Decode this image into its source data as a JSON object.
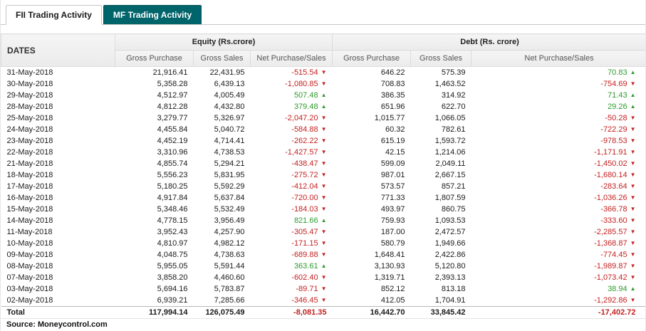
{
  "tabs": [
    {
      "label": "FII Trading Activity",
      "active": true
    },
    {
      "label": "MF Trading Activity",
      "active": false
    }
  ],
  "colors": {
    "negative": "#c42121",
    "positive": "#2e9b2e",
    "inactive_tab_bg": "#00646b"
  },
  "icons": {
    "up": "▲",
    "down": "▼"
  },
  "table": {
    "dates_header": "DATES",
    "groups": [
      {
        "label": "Equity (Rs.crore)"
      },
      {
        "label": "Debt (Rs. crore)"
      }
    ],
    "sub_headers": [
      "Gross Purchase",
      "Gross Sales",
      "Net Purchase/Sales",
      "Gross Purchase",
      "Gross Sales",
      "Net Purchase/Sales"
    ],
    "rows": [
      {
        "date": "31-May-2018",
        "eq_gp": "21,916.41",
        "eq_gs": "22,431.95",
        "eq_net": "-515.54",
        "eq_dir": "down",
        "dt_gp": "646.22",
        "dt_gs": "575.39",
        "dt_net": "70.83",
        "dt_dir": "up"
      },
      {
        "date": "30-May-2018",
        "eq_gp": "5,358.28",
        "eq_gs": "6,439.13",
        "eq_net": "-1,080.85",
        "eq_dir": "down",
        "dt_gp": "708.83",
        "dt_gs": "1,463.52",
        "dt_net": "-754.69",
        "dt_dir": "down"
      },
      {
        "date": "29-May-2018",
        "eq_gp": "4,512.97",
        "eq_gs": "4,005.49",
        "eq_net": "507.48",
        "eq_dir": "up",
        "dt_gp": "386.35",
        "dt_gs": "314.92",
        "dt_net": "71.43",
        "dt_dir": "up"
      },
      {
        "date": "28-May-2018",
        "eq_gp": "4,812.28",
        "eq_gs": "4,432.80",
        "eq_net": "379.48",
        "eq_dir": "up",
        "dt_gp": "651.96",
        "dt_gs": "622.70",
        "dt_net": "29.26",
        "dt_dir": "up"
      },
      {
        "date": "25-May-2018",
        "eq_gp": "3,279.77",
        "eq_gs": "5,326.97",
        "eq_net": "-2,047.20",
        "eq_dir": "down",
        "dt_gp": "1,015.77",
        "dt_gs": "1,066.05",
        "dt_net": "-50.28",
        "dt_dir": "down"
      },
      {
        "date": "24-May-2018",
        "eq_gp": "4,455.84",
        "eq_gs": "5,040.72",
        "eq_net": "-584.88",
        "eq_dir": "down",
        "dt_gp": "60.32",
        "dt_gs": "782.61",
        "dt_net": "-722.29",
        "dt_dir": "down"
      },
      {
        "date": "23-May-2018",
        "eq_gp": "4,452.19",
        "eq_gs": "4,714.41",
        "eq_net": "-262.22",
        "eq_dir": "down",
        "dt_gp": "615.19",
        "dt_gs": "1,593.72",
        "dt_net": "-978.53",
        "dt_dir": "down"
      },
      {
        "date": "22-May-2018",
        "eq_gp": "3,310.96",
        "eq_gs": "4,738.53",
        "eq_net": "-1,427.57",
        "eq_dir": "down",
        "dt_gp": "42.15",
        "dt_gs": "1,214.06",
        "dt_net": "-1,171.91",
        "dt_dir": "down"
      },
      {
        "date": "21-May-2018",
        "eq_gp": "4,855.74",
        "eq_gs": "5,294.21",
        "eq_net": "-438.47",
        "eq_dir": "down",
        "dt_gp": "599.09",
        "dt_gs": "2,049.11",
        "dt_net": "-1,450.02",
        "dt_dir": "down"
      },
      {
        "date": "18-May-2018",
        "eq_gp": "5,556.23",
        "eq_gs": "5,831.95",
        "eq_net": "-275.72",
        "eq_dir": "down",
        "dt_gp": "987.01",
        "dt_gs": "2,667.15",
        "dt_net": "-1,680.14",
        "dt_dir": "down"
      },
      {
        "date": "17-May-2018",
        "eq_gp": "5,180.25",
        "eq_gs": "5,592.29",
        "eq_net": "-412.04",
        "eq_dir": "down",
        "dt_gp": "573.57",
        "dt_gs": "857.21",
        "dt_net": "-283.64",
        "dt_dir": "down"
      },
      {
        "date": "16-May-2018",
        "eq_gp": "4,917.84",
        "eq_gs": "5,637.84",
        "eq_net": "-720.00",
        "eq_dir": "down",
        "dt_gp": "771.33",
        "dt_gs": "1,807.59",
        "dt_net": "-1,036.26",
        "dt_dir": "down"
      },
      {
        "date": "15-May-2018",
        "eq_gp": "5,348.46",
        "eq_gs": "5,532.49",
        "eq_net": "-184.03",
        "eq_dir": "down",
        "dt_gp": "493.97",
        "dt_gs": "860.75",
        "dt_net": "-366.78",
        "dt_dir": "down"
      },
      {
        "date": "14-May-2018",
        "eq_gp": "4,778.15",
        "eq_gs": "3,956.49",
        "eq_net": "821.66",
        "eq_dir": "up",
        "dt_gp": "759.93",
        "dt_gs": "1,093.53",
        "dt_net": "-333.60",
        "dt_dir": "down"
      },
      {
        "date": "11-May-2018",
        "eq_gp": "3,952.43",
        "eq_gs": "4,257.90",
        "eq_net": "-305.47",
        "eq_dir": "down",
        "dt_gp": "187.00",
        "dt_gs": "2,472.57",
        "dt_net": "-2,285.57",
        "dt_dir": "down"
      },
      {
        "date": "10-May-2018",
        "eq_gp": "4,810.97",
        "eq_gs": "4,982.12",
        "eq_net": "-171.15",
        "eq_dir": "down",
        "dt_gp": "580.79",
        "dt_gs": "1,949.66",
        "dt_net": "-1,368.87",
        "dt_dir": "down"
      },
      {
        "date": "09-May-2018",
        "eq_gp": "4,048.75",
        "eq_gs": "4,738.63",
        "eq_net": "-689.88",
        "eq_dir": "down",
        "dt_gp": "1,648.41",
        "dt_gs": "2,422.86",
        "dt_net": "-774.45",
        "dt_dir": "down"
      },
      {
        "date": "08-May-2018",
        "eq_gp": "5,955.05",
        "eq_gs": "5,591.44",
        "eq_net": "363.61",
        "eq_dir": "up",
        "dt_gp": "3,130.93",
        "dt_gs": "5,120.80",
        "dt_net": "-1,989.87",
        "dt_dir": "down"
      },
      {
        "date": "07-May-2018",
        "eq_gp": "3,858.20",
        "eq_gs": "4,460.60",
        "eq_net": "-602.40",
        "eq_dir": "down",
        "dt_gp": "1,319.71",
        "dt_gs": "2,393.13",
        "dt_net": "-1,073.42",
        "dt_dir": "down"
      },
      {
        "date": "03-May-2018",
        "eq_gp": "5,694.16",
        "eq_gs": "5,783.87",
        "eq_net": "-89.71",
        "eq_dir": "down",
        "dt_gp": "852.12",
        "dt_gs": "813.18",
        "dt_net": "38.94",
        "dt_dir": "up"
      },
      {
        "date": "02-May-2018",
        "eq_gp": "6,939.21",
        "eq_gs": "7,285.66",
        "eq_net": "-346.45",
        "eq_dir": "down",
        "dt_gp": "412.05",
        "dt_gs": "1,704.91",
        "dt_net": "-1,292.86",
        "dt_dir": "down"
      }
    ],
    "total": {
      "date": "Total",
      "eq_gp": "117,994.14",
      "eq_gs": "126,075.49",
      "eq_net": "-8,081.35",
      "dt_gp": "16,442.70",
      "dt_gs": "33,845.42",
      "dt_net": "-17,402.72"
    }
  },
  "source": "Source: Moneycontrol.com"
}
